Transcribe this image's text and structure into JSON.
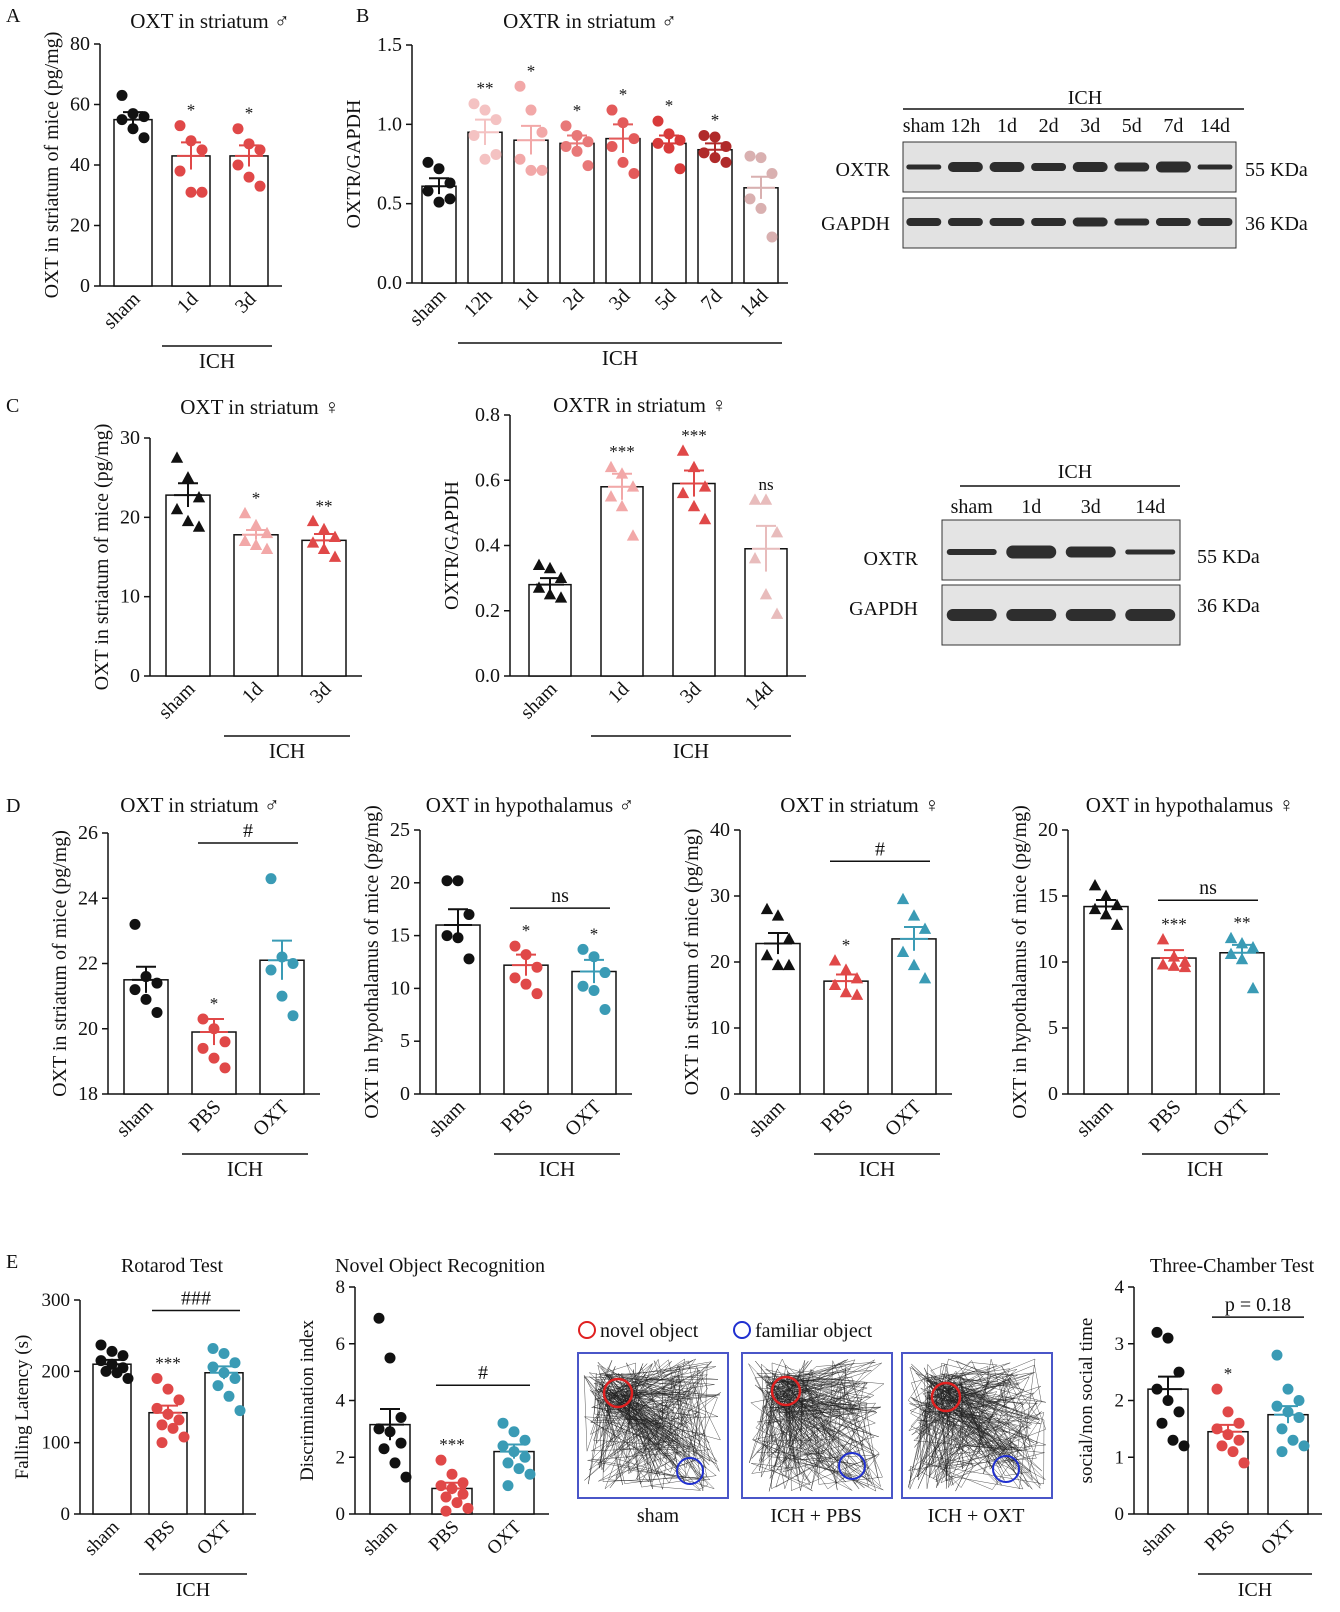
{
  "panel_letters": [
    "A",
    "B",
    "C",
    "D",
    "E"
  ],
  "colors": {
    "black": "#111111",
    "red": "#e04848",
    "pink": "#f2a8a8",
    "light_pink": "#f4c2c2",
    "red_mid": "#e35a5a",
    "red_deep": "#d83a3a",
    "dark_red": "#b02a2a",
    "mauve": "#d9b0b0",
    "teal": "#3a9bb5",
    "blue_outline": "#4a56c8"
  },
  "groups": {
    "ich": "ICH"
  },
  "blots": {
    "b_male": {
      "header": "ICH",
      "lanes": [
        "sham",
        "12h",
        "1d",
        "2d",
        "3d",
        "5d",
        "7d",
        "14d"
      ],
      "rows": [
        {
          "name": "OXTR",
          "kda": "55 KDa"
        },
        {
          "name": "GAPDH",
          "kda": "36 KDa"
        }
      ]
    },
    "c_female": {
      "header": "ICH",
      "lanes": [
        "sham",
        "1d",
        "3d",
        "14d"
      ],
      "rows": [
        {
          "name": "OXTR",
          "kda": "55 KDa"
        },
        {
          "name": "GAPDH",
          "kda": "36 KDa"
        }
      ]
    }
  },
  "track_panel": {
    "legend_novel": "novel object",
    "legend_familiar": "familiar object",
    "labels": [
      "sham",
      "ICH + PBS",
      "ICH + OXT"
    ]
  },
  "chart_data": [
    {
      "id": "A",
      "type": "bar",
      "title": "OXT in striatum ♂",
      "ylabel": "OXT in striatum of mice (pg/mg)",
      "ylim": [
        0,
        80
      ],
      "yticks": [
        "0",
        "20",
        "40",
        "60",
        "80"
      ],
      "categories": [
        "sham",
        "1d",
        "3d"
      ],
      "values": [
        55,
        43,
        43
      ],
      "errors": [
        2.5,
        4.5,
        3.5
      ],
      "points": [
        [
          63,
          57,
          56,
          55,
          52,
          49
        ],
        [
          53,
          48,
          45,
          38,
          31,
          31
        ],
        [
          52,
          47,
          45,
          40,
          36,
          33
        ]
      ],
      "marker": "circle",
      "colors": [
        "#111111",
        "#e04848",
        "#e04848"
      ],
      "significance": [
        "",
        "*",
        "*"
      ],
      "group_label": "ICH"
    },
    {
      "id": "B",
      "type": "bar",
      "title": "OXTR in striatum ♂",
      "ylabel": "OXTR/GAPDH",
      "ylim": [
        0,
        1.5
      ],
      "yticks": [
        "0.0",
        "0.5",
        "1.0",
        "1.5"
      ],
      "categories": [
        "sham",
        "12h",
        "1d",
        "2d",
        "3d",
        "5d",
        "7d",
        "14d"
      ],
      "values": [
        0.61,
        0.95,
        0.9,
        0.88,
        0.91,
        0.88,
        0.84,
        0.6
      ],
      "errors": [
        0.05,
        0.08,
        0.09,
        0.05,
        0.09,
        0.05,
        0.04,
        0.07
      ],
      "points": [
        [
          0.76,
          0.72,
          0.63,
          0.58,
          0.51,
          0.53
        ],
        [
          1.13,
          1.09,
          1.03,
          0.93,
          0.78,
          0.81
        ],
        [
          1.24,
          1.09,
          0.95,
          0.78,
          0.71,
          0.71
        ],
        [
          0.99,
          0.93,
          0.89,
          0.86,
          0.83,
          0.74
        ],
        [
          1.09,
          1.01,
          0.91,
          0.86,
          0.76,
          0.69
        ],
        [
          1.02,
          0.94,
          0.9,
          0.88,
          0.85,
          0.72
        ],
        [
          0.93,
          0.92,
          0.86,
          0.82,
          0.79,
          0.76
        ],
        [
          0.8,
          0.79,
          0.69,
          0.53,
          0.47,
          0.29
        ]
      ],
      "marker": "circle",
      "colors": [
        "#111111",
        "#f4c2c2",
        "#f2a8a8",
        "#e87878",
        "#e35a5a",
        "#d83a3a",
        "#b02a2a",
        "#d9b0b0"
      ],
      "significance": [
        "",
        "**",
        "*",
        "*",
        "*",
        "*",
        "*",
        ""
      ],
      "group_label": "ICH"
    },
    {
      "id": "C1",
      "type": "bar",
      "title": "OXT in striatum ♀",
      "ylabel": "OXT in striatum of mice (pg/mg)",
      "ylim": [
        0,
        30
      ],
      "yticks": [
        "0",
        "10",
        "20",
        "30"
      ],
      "categories": [
        "sham",
        "1d",
        "3d"
      ],
      "values": [
        22.8,
        17.8,
        17.1
      ],
      "errors": [
        1.5,
        0.6,
        0.8
      ],
      "points": [
        [
          27.5,
          25,
          22.5,
          21,
          19.5,
          18.8
        ],
        [
          20.5,
          19,
          18,
          17,
          16.5,
          16
        ],
        [
          19.5,
          18.5,
          17.5,
          16.8,
          16,
          15
        ]
      ],
      "marker": "triangle",
      "colors": [
        "#111111",
        "#f2a8a8",
        "#e04848"
      ],
      "significance": [
        "",
        "*",
        "**"
      ],
      "group_label": "ICH"
    },
    {
      "id": "C2",
      "type": "bar",
      "title": "OXTR in striatum ♀",
      "ylabel": "OXTR/GAPDH",
      "ylim": [
        0,
        0.8
      ],
      "yticks": [
        "0.0",
        "0.2",
        "0.4",
        "0.6",
        "0.8"
      ],
      "categories": [
        "sham",
        "1d",
        "3d",
        "14d"
      ],
      "values": [
        0.28,
        0.58,
        0.59,
        0.39
      ],
      "errors": [
        0.02,
        0.04,
        0.04,
        0.07
      ],
      "points": [
        [
          0.34,
          0.33,
          0.3,
          0.27,
          0.25,
          0.24
        ],
        [
          0.64,
          0.62,
          0.58,
          0.55,
          0.52,
          0.43
        ],
        [
          0.69,
          0.64,
          0.58,
          0.56,
          0.52,
          0.48
        ],
        [
          0.54,
          0.54,
          0.44,
          0.36,
          0.25,
          0.19
        ]
      ],
      "marker": "triangle",
      "colors": [
        "#111111",
        "#f2a8a8",
        "#e04848",
        "#e8bcbc"
      ],
      "significance": [
        "",
        "***",
        "***",
        "ns"
      ],
      "group_label": "ICH"
    },
    {
      "id": "D1",
      "type": "bar",
      "title": "OXT in striatum ♂",
      "ylabel": "OXT in striatum of mice (pg/mg)",
      "ylim": [
        18,
        26
      ],
      "yticks": [
        "18",
        "20",
        "22",
        "24",
        "26"
      ],
      "categories": [
        "sham",
        "PBS",
        "OXT"
      ],
      "values": [
        21.5,
        19.9,
        22.1
      ],
      "errors": [
        0.4,
        0.4,
        0.6
      ],
      "points": [
        [
          23.2,
          21.6,
          21.4,
          21.2,
          20.9,
          20.5
        ],
        [
          20.3,
          20,
          19.6,
          19.4,
          19.1,
          18.8
        ],
        [
          24.6,
          22.2,
          22,
          21.8,
          21,
          20.4
        ]
      ],
      "marker": "circle",
      "colors": [
        "#111111",
        "#e04848",
        "#3a9bb5"
      ],
      "significance": [
        "",
        "*",
        ""
      ],
      "comparison": {
        "from": 1,
        "to": 2,
        "label": "#"
      },
      "group_label": "ICH"
    },
    {
      "id": "D2",
      "type": "bar",
      "title": "OXT in hypothalamus ♂",
      "ylabel": "OXT in hypothalamus of mice (pg/mg)",
      "ylim": [
        0,
        25
      ],
      "yticks": [
        "0",
        "5",
        "10",
        "15",
        "20",
        "25"
      ],
      "categories": [
        "sham",
        "PBS",
        "OXT"
      ],
      "values": [
        16,
        12.2,
        11.6
      ],
      "errors": [
        1.5,
        1,
        1.1
      ],
      "points": [
        [
          20.2,
          20.2,
          17,
          15,
          14.8,
          12.8
        ],
        [
          14,
          13.2,
          12,
          11,
          10.4,
          9.5
        ],
        [
          13.7,
          13,
          11.5,
          10.2,
          9.8,
          8
        ]
      ],
      "marker": "circle",
      "colors": [
        "#111111",
        "#e04848",
        "#3a9bb5"
      ],
      "significance": [
        "",
        "*",
        "*"
      ],
      "comparison": {
        "from": 1,
        "to": 2,
        "label": "ns"
      },
      "group_label": "ICH"
    },
    {
      "id": "D3",
      "type": "bar",
      "title": "OXT in striatum ♀",
      "ylabel": "OXT in striatum of mice (pg/mg)",
      "ylim": [
        0,
        40
      ],
      "yticks": [
        "0",
        "10",
        "20",
        "30",
        "40"
      ],
      "categories": [
        "sham",
        "PBS",
        "OXT"
      ],
      "values": [
        22.8,
        17.1,
        23.5
      ],
      "errors": [
        1.6,
        1,
        1.8
      ],
      "points": [
        [
          28,
          27,
          23.5,
          21,
          19.5,
          19.5
        ],
        [
          20.2,
          18.8,
          17.5,
          16.5,
          15.4,
          15
        ],
        [
          29.5,
          27,
          25,
          21.5,
          19.5,
          17.5
        ]
      ],
      "marker": "triangle",
      "colors": [
        "#111111",
        "#e04848",
        "#3a9bb5"
      ],
      "significance": [
        "",
        "*",
        ""
      ],
      "comparison": {
        "from": 1,
        "to": 2,
        "label": "#"
      },
      "group_label": "ICH"
    },
    {
      "id": "D4",
      "type": "bar",
      "title": "OXT in hypothalamus ♀",
      "ylabel": "OXT in hypothalamus of mice (pg/mg)",
      "ylim": [
        0,
        20
      ],
      "yticks": [
        "0",
        "5",
        "10",
        "15",
        "20"
      ],
      "categories": [
        "sham",
        "PBS",
        "OXT"
      ],
      "values": [
        14.2,
        10.3,
        10.7
      ],
      "errors": [
        0.5,
        0.6,
        0.6
      ],
      "points": [
        [
          15.8,
          15,
          14.3,
          14,
          13.6,
          12.8
        ],
        [
          11.7,
          10.4,
          10,
          9.8,
          9.7,
          9.6
        ],
        [
          11.8,
          11.4,
          11.1,
          10.6,
          10.2,
          8
        ]
      ],
      "marker": "triangle",
      "colors": [
        "#111111",
        "#e04848",
        "#3a9bb5"
      ],
      "significance": [
        "",
        "***",
        "**"
      ],
      "comparison": {
        "from": 1,
        "to": 2,
        "label": "ns"
      },
      "group_label": "ICH"
    },
    {
      "id": "E1",
      "type": "bar",
      "title": "Rotarod Test",
      "ylabel": "Falling Latency (s)",
      "ylim": [
        0,
        300
      ],
      "yticks": [
        "0",
        "100",
        "200",
        "300"
      ],
      "categories": [
        "sham",
        "PBS",
        "OXT"
      ],
      "values": [
        210,
        142,
        198
      ],
      "errors": [
        6,
        10,
        9
      ],
      "points": [
        [
          237,
          228,
          222,
          215,
          210,
          205,
          200,
          198,
          190
        ],
        [
          190,
          175,
          160,
          148,
          140,
          132,
          125,
          120,
          108,
          100
        ],
        [
          232,
          225,
          212,
          206,
          198,
          190,
          180,
          165,
          145
        ]
      ],
      "marker": "circle",
      "colors": [
        "#111111",
        "#e04848",
        "#3a9bb5"
      ],
      "significance": [
        "",
        "***",
        ""
      ],
      "comparison": {
        "from": 1,
        "to": 2,
        "label": "###"
      },
      "group_label": "ICH"
    },
    {
      "id": "E2",
      "type": "bar",
      "title": "Novel Object Recognition",
      "ylabel": "Discrimination index",
      "ylim": [
        0,
        8
      ],
      "yticks": [
        "0",
        "2",
        "4",
        "6",
        "8"
      ],
      "categories": [
        "sham",
        "PBS",
        "OXT"
      ],
      "values": [
        3.15,
        0.9,
        2.2
      ],
      "errors": [
        0.55,
        0.2,
        0.25
      ],
      "points": [
        [
          6.9,
          5.5,
          3.4,
          3,
          2.9,
          2.5,
          2.3,
          1.8,
          1.3
        ],
        [
          1.9,
          1.4,
          1.1,
          1,
          0.9,
          0.7,
          0.6,
          0.4,
          0.2,
          0.1
        ],
        [
          3.2,
          2.9,
          2.6,
          2.4,
          2.2,
          2,
          1.8,
          1.6,
          1.4,
          1
        ]
      ],
      "marker": "circle",
      "colors": [
        "#111111",
        "#e04848",
        "#3a9bb5"
      ],
      "significance": [
        "",
        "***",
        ""
      ],
      "comparison": {
        "from": 1,
        "to": 2,
        "label": "#"
      },
      "group_label": ""
    },
    {
      "id": "E3",
      "type": "bar",
      "title": "Three-Chamber Test",
      "ylabel": "social/non social time",
      "ylim": [
        0,
        4
      ],
      "yticks": [
        "0",
        "1",
        "2",
        "3",
        "4"
      ],
      "categories": [
        "sham",
        "PBS",
        "OXT"
      ],
      "values": [
        2.2,
        1.45,
        1.75
      ],
      "errors": [
        0.22,
        0.12,
        0.15
      ],
      "points": [
        [
          3.2,
          3.1,
          2.5,
          2.2,
          2,
          1.8,
          1.6,
          1.3,
          1.2
        ],
        [
          2.2,
          1.8,
          1.6,
          1.5,
          1.4,
          1.3,
          1.2,
          1.1,
          0.9
        ],
        [
          2.8,
          2.2,
          2,
          1.9,
          1.8,
          1.7,
          1.5,
          1.3,
          1.2,
          1.1
        ]
      ],
      "marker": "circle",
      "colors": [
        "#111111",
        "#e04848",
        "#3a9bb5"
      ],
      "significance": [
        "",
        "*",
        ""
      ],
      "comparison": {
        "from": 1,
        "to": 2,
        "label": "p = 0.18"
      },
      "group_label": "ICH"
    }
  ]
}
